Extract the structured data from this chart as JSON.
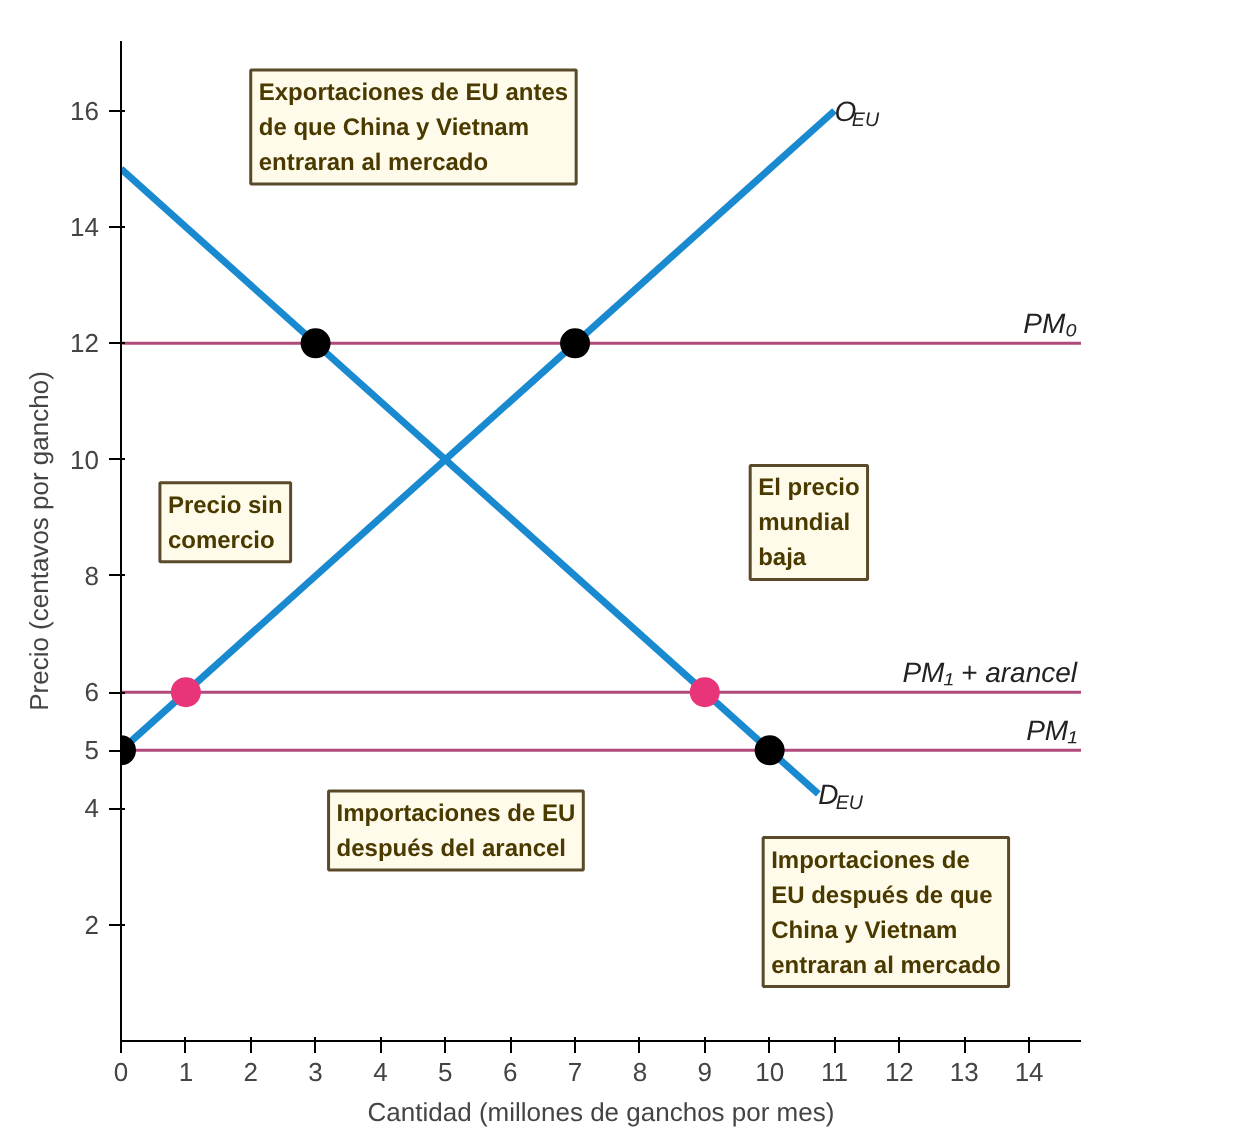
{
  "chart_data": {
    "type": "line",
    "xlabel": "Cantidad (millones de ganchos por mes)",
    "ylabel": "Precio (centavos por gancho)",
    "xlim": [
      0,
      14.8
    ],
    "ylim": [
      0,
      17.2
    ],
    "xticks": [
      0,
      1,
      2,
      3,
      4,
      5,
      6,
      7,
      8,
      9,
      10,
      11,
      12,
      13,
      14
    ],
    "yticks": [
      2,
      4,
      5,
      6,
      8,
      10,
      12,
      14,
      16
    ],
    "grid": false,
    "line_style": "solid",
    "series": [
      {
        "name": "O$_{EU}$",
        "color": "#1a8ad0",
        "x": [
          0,
          11
        ],
        "values": [
          5,
          16
        ]
      },
      {
        "name": "D$_{EU}$",
        "color": "#1a8ad0",
        "x": [
          0,
          10.75
        ],
        "values": [
          15,
          4.25
        ]
      },
      {
        "type": "scatter",
        "color": "#000000",
        "x": [
          3,
          7,
          0,
          10
        ],
        "values": [
          12,
          12,
          5,
          5
        ]
      },
      {
        "type": "scatter",
        "color": "#e8357a",
        "x": [
          1,
          9
        ],
        "values": [
          6,
          6
        ]
      }
    ],
    "ref_lines": [
      {
        "axis": "y",
        "value": 12,
        "label": "PM₀",
        "color": "#b04a7a"
      },
      {
        "axis": "y",
        "value": 6,
        "label": "PM₁ + arancel",
        "color": "#b04a7a"
      },
      {
        "axis": "y",
        "value": 5,
        "label": "PM₁",
        "color": "#b04a7a"
      }
    ],
    "annotations": [
      "Exportaciones de EU antes\nde que China y Vietnam\nentraran al mercado",
      "Precio sin\ncomercio",
      "El precio\nmundial\nbaja",
      "Importaciones de EU\ndespués del arancel",
      "Importaciones de\nEU después de que\nChina y Vietnam\nentraran al mercado"
    ]
  }
}
